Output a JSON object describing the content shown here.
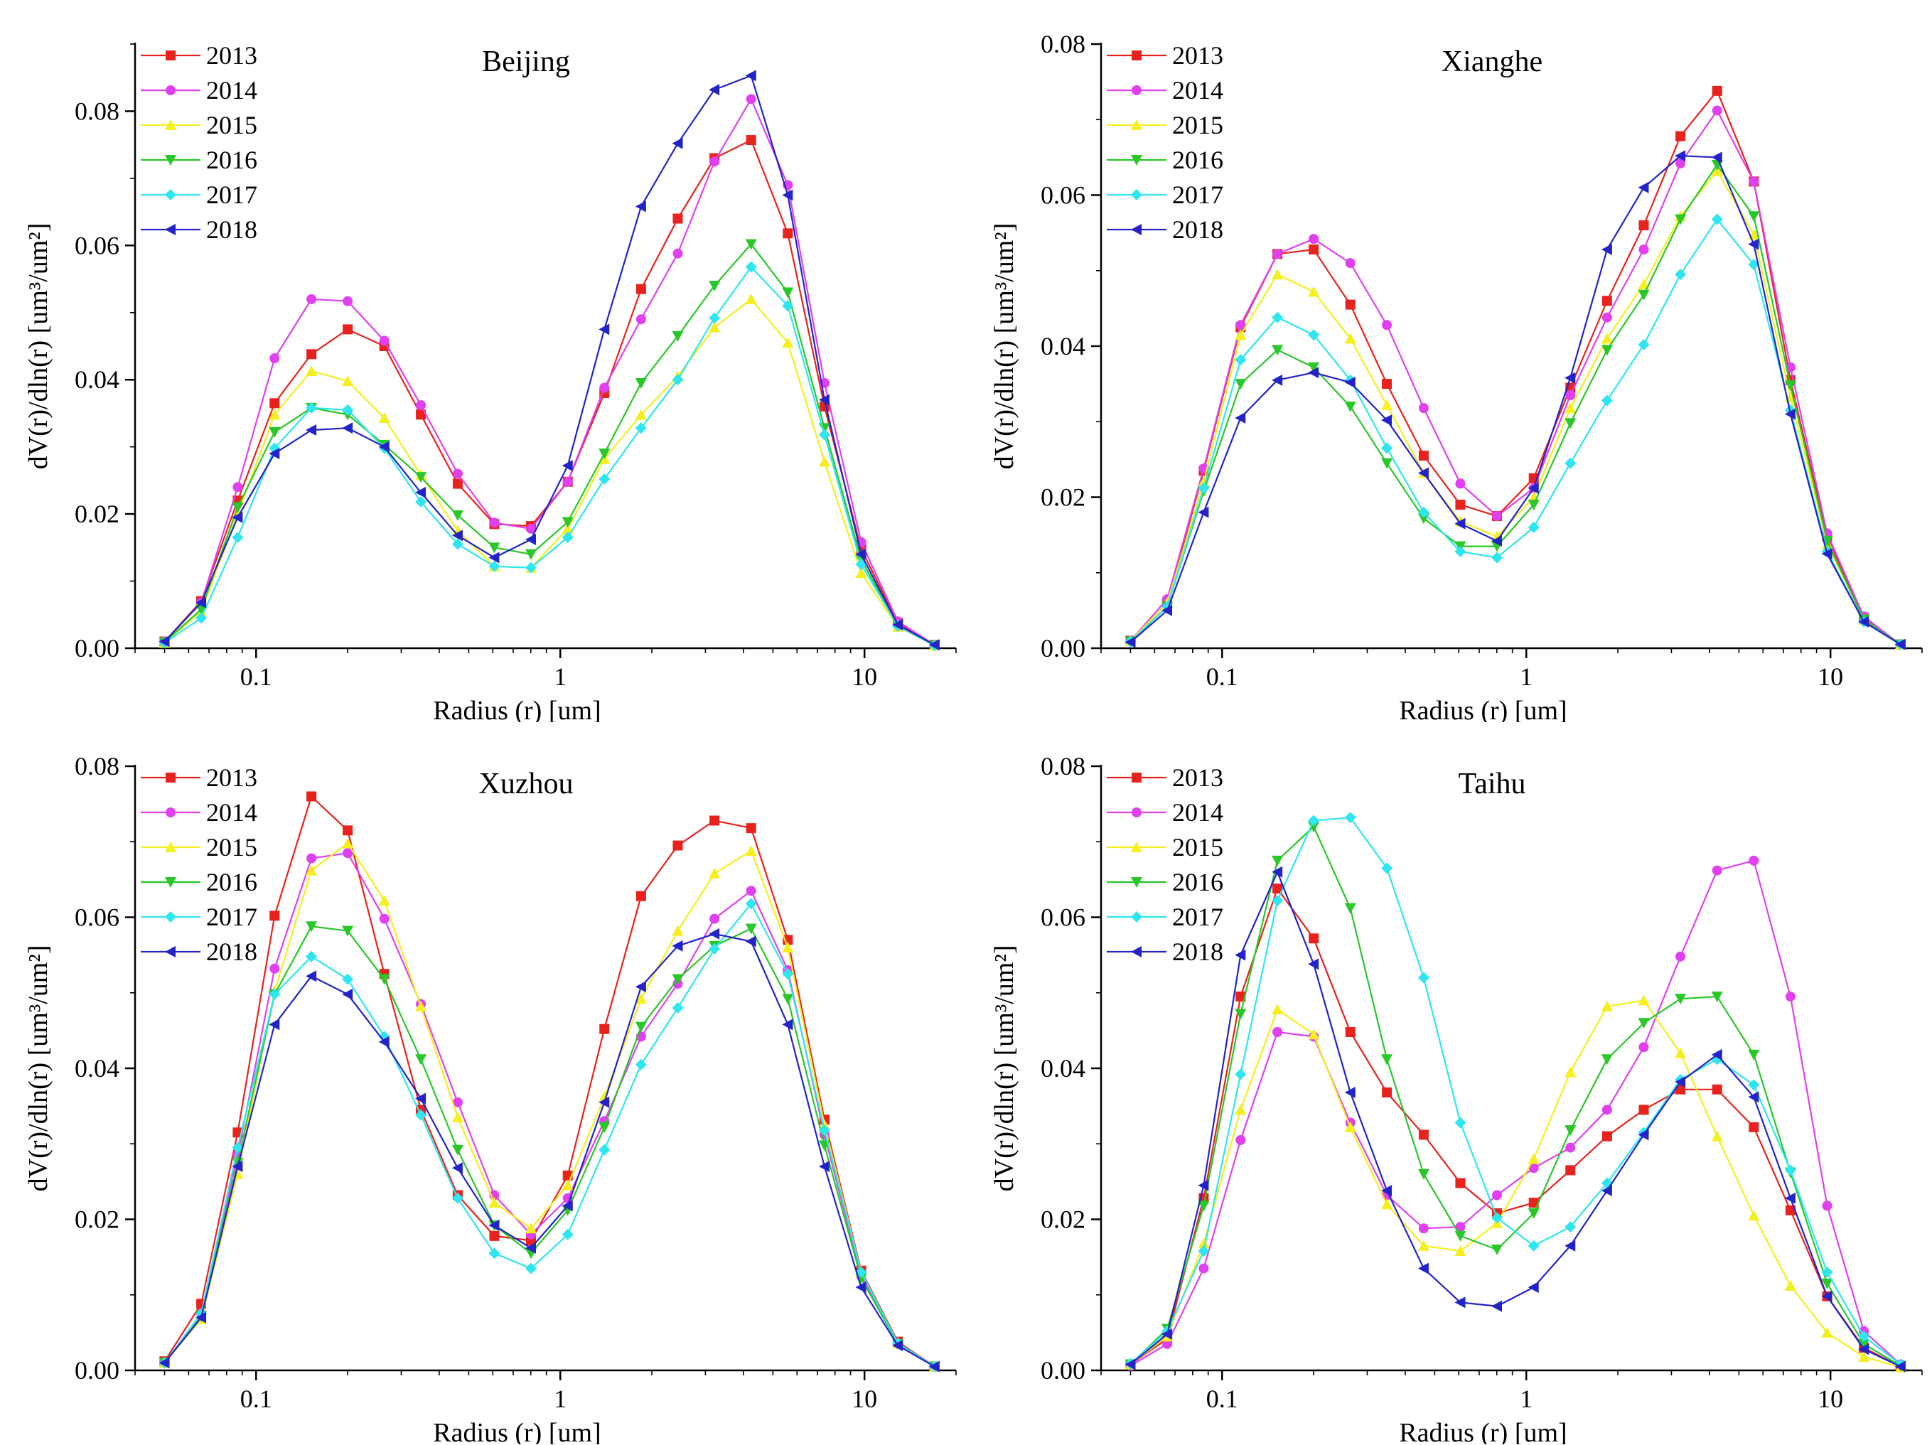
{
  "colors": {
    "2013": "#e8231d",
    "2014": "#e040f0",
    "2015": "#f5ef1e",
    "2016": "#28c828",
    "2017": "#2ee6f0",
    "2018": "#2323c8",
    "axis": "#000000"
  },
  "chart_data": [
    {
      "type": "line",
      "title": "Beijing",
      "xlabel": "Radius (r) [um]",
      "ylabel": "dV(r)/dln(r) [um³/um²]",
      "x_scale": "log",
      "xlim": [
        0.04,
        20
      ],
      "ylim": [
        0,
        0.09
      ],
      "x_ticks": [
        "0.1",
        "1",
        "10"
      ],
      "y_ticks": [
        "0.00",
        "0.02",
        "0.04",
        "0.06",
        "0.08"
      ],
      "legend_position": "top-left",
      "x": [
        0.05,
        0.066,
        0.087,
        0.115,
        0.152,
        0.2,
        0.264,
        0.348,
        0.46,
        0.607,
        0.801,
        1.058,
        1.396,
        1.843,
        2.433,
        3.212,
        4.24,
        5.597,
        7.389,
        9.753,
        12.875,
        16.996
      ],
      "series": [
        {
          "name": "2013",
          "values": [
            0.001,
            0.007,
            0.022,
            0.0365,
            0.0438,
            0.0475,
            0.045,
            0.0348,
            0.0245,
            0.0185,
            0.0182,
            0.0248,
            0.038,
            0.0535,
            0.064,
            0.073,
            0.0757,
            0.0618,
            0.036,
            0.0148,
            0.0038,
            0.0005
          ]
        },
        {
          "name": "2014",
          "values": [
            0.001,
            0.0068,
            0.024,
            0.0432,
            0.052,
            0.0517,
            0.0458,
            0.0362,
            0.026,
            0.0187,
            0.0178,
            0.0248,
            0.0388,
            0.049,
            0.0588,
            0.0725,
            0.0818,
            0.069,
            0.0395,
            0.0158,
            0.004,
            0.0005
          ]
        },
        {
          "name": "2015",
          "values": [
            0.0008,
            0.0055,
            0.02,
            0.0348,
            0.0413,
            0.0398,
            0.0343,
            0.0258,
            0.0175,
            0.0122,
            0.012,
            0.0178,
            0.0282,
            0.0348,
            0.0405,
            0.0478,
            0.052,
            0.0455,
            0.0278,
            0.0112,
            0.0032,
            0.0004
          ]
        },
        {
          "name": "2016",
          "values": [
            0.0009,
            0.0058,
            0.021,
            0.0322,
            0.0358,
            0.0348,
            0.0303,
            0.0255,
            0.0198,
            0.015,
            0.014,
            0.0188,
            0.029,
            0.0395,
            0.0465,
            0.054,
            0.0602,
            0.053,
            0.0328,
            0.0132,
            0.0034,
            0.0004
          ]
        },
        {
          "name": "2017",
          "values": [
            0.0008,
            0.0045,
            0.0165,
            0.0298,
            0.0358,
            0.0355,
            0.0298,
            0.0218,
            0.0155,
            0.0122,
            0.012,
            0.0165,
            0.0252,
            0.0328,
            0.04,
            0.0492,
            0.0568,
            0.051,
            0.0318,
            0.0125,
            0.0033,
            0.0004
          ]
        },
        {
          "name": "2018",
          "values": [
            0.001,
            0.0068,
            0.0195,
            0.029,
            0.0325,
            0.0328,
            0.03,
            0.0232,
            0.0168,
            0.0135,
            0.0162,
            0.0272,
            0.0475,
            0.0658,
            0.0752,
            0.0832,
            0.0853,
            0.0675,
            0.037,
            0.014,
            0.0035,
            0.0005
          ]
        }
      ]
    },
    {
      "type": "line",
      "title": "Xianghe",
      "xlabel": "Radius (r) [um]",
      "ylabel": "dV(r)/dln(r) [um³/um²]",
      "x_scale": "log",
      "xlim": [
        0.04,
        20
      ],
      "ylim": [
        0,
        0.08
      ],
      "x_ticks": [
        "0.1",
        "1",
        "10"
      ],
      "y_ticks": [
        "0.00",
        "0.02",
        "0.04",
        "0.06",
        "0.08"
      ],
      "legend_position": "top-left",
      "x": [
        0.05,
        0.066,
        0.087,
        0.115,
        0.152,
        0.2,
        0.264,
        0.348,
        0.46,
        0.607,
        0.801,
        1.058,
        1.396,
        1.843,
        2.433,
        3.212,
        4.24,
        5.597,
        7.389,
        9.753,
        12.875,
        16.996
      ],
      "series": [
        {
          "name": "2013",
          "values": [
            0.001,
            0.006,
            0.0235,
            0.0425,
            0.0522,
            0.0528,
            0.0455,
            0.035,
            0.0255,
            0.019,
            0.0175,
            0.0225,
            0.0345,
            0.046,
            0.056,
            0.0678,
            0.0738,
            0.0618,
            0.0355,
            0.0148,
            0.004,
            0.0005
          ]
        },
        {
          "name": "2014",
          "values": [
            0.001,
            0.0065,
            0.0238,
            0.0428,
            0.0522,
            0.0542,
            0.051,
            0.0428,
            0.0318,
            0.0218,
            0.0175,
            0.0212,
            0.0335,
            0.0438,
            0.0528,
            0.0642,
            0.0712,
            0.0618,
            0.0372,
            0.0152,
            0.0042,
            0.0005
          ]
        },
        {
          "name": "2015",
          "values": [
            0.001,
            0.006,
            0.022,
            0.0415,
            0.0495,
            0.0472,
            0.041,
            0.0322,
            0.0232,
            0.0168,
            0.0148,
            0.02,
            0.0318,
            0.041,
            0.0482,
            0.0572,
            0.0632,
            0.0548,
            0.0332,
            0.0138,
            0.0038,
            0.0005
          ]
        },
        {
          "name": "2016",
          "values": [
            0.0009,
            0.0055,
            0.0208,
            0.035,
            0.0395,
            0.0372,
            0.032,
            0.0245,
            0.0172,
            0.0135,
            0.0135,
            0.019,
            0.0298,
            0.0395,
            0.0468,
            0.0568,
            0.064,
            0.0572,
            0.0348,
            0.0142,
            0.0038,
            0.0005
          ]
        },
        {
          "name": "2017",
          "values": [
            0.0009,
            0.0055,
            0.0212,
            0.0382,
            0.0438,
            0.0415,
            0.0355,
            0.0265,
            0.018,
            0.0128,
            0.012,
            0.016,
            0.0245,
            0.0328,
            0.0402,
            0.0495,
            0.0568,
            0.0508,
            0.0315,
            0.0128,
            0.0035,
            0.0005
          ]
        },
        {
          "name": "2018",
          "values": [
            0.0008,
            0.005,
            0.018,
            0.0305,
            0.0355,
            0.0365,
            0.0352,
            0.0302,
            0.0232,
            0.0165,
            0.0142,
            0.0212,
            0.0358,
            0.0528,
            0.061,
            0.0652,
            0.065,
            0.0535,
            0.031,
            0.0125,
            0.0035,
            0.0005
          ]
        }
      ]
    },
    {
      "type": "line",
      "title": "Xuzhou",
      "xlabel": "Radius (r) [um]",
      "ylabel": "dV(r)/dln(r) [um³/um²]",
      "x_scale": "log",
      "xlim": [
        0.04,
        20
      ],
      "ylim": [
        0,
        0.08
      ],
      "x_ticks": [
        "0.1",
        "1",
        "10"
      ],
      "y_ticks": [
        "0.00",
        "0.02",
        "0.04",
        "0.06",
        "0.08"
      ],
      "legend_position": "top-left",
      "x": [
        0.05,
        0.066,
        0.087,
        0.115,
        0.152,
        0.2,
        0.264,
        0.348,
        0.46,
        0.607,
        0.801,
        1.058,
        1.396,
        1.843,
        2.433,
        3.212,
        4.24,
        5.597,
        7.389,
        9.753,
        12.875,
        16.996
      ],
      "series": [
        {
          "name": "2013",
          "values": [
            0.0012,
            0.0088,
            0.0315,
            0.0602,
            0.076,
            0.0715,
            0.0525,
            0.0345,
            0.0232,
            0.0178,
            0.0172,
            0.0258,
            0.0452,
            0.0628,
            0.0695,
            0.0728,
            0.0718,
            0.057,
            0.0332,
            0.0132,
            0.0038,
            0.0005
          ]
        },
        {
          "name": "2014",
          "values": [
            0.001,
            0.0075,
            0.0285,
            0.0532,
            0.0678,
            0.0685,
            0.0598,
            0.0485,
            0.0355,
            0.0232,
            0.018,
            0.0228,
            0.033,
            0.0442,
            0.0512,
            0.0598,
            0.0635,
            0.053,
            0.0312,
            0.0125,
            0.0035,
            0.0005
          ]
        },
        {
          "name": "2015",
          "values": [
            0.001,
            0.0068,
            0.026,
            0.0502,
            0.0662,
            0.0698,
            0.0622,
            0.0482,
            0.0335,
            0.0222,
            0.0188,
            0.0245,
            0.0362,
            0.0492,
            0.0582,
            0.0658,
            0.0688,
            0.056,
            0.0325,
            0.013,
            0.0036,
            0.0005
          ]
        },
        {
          "name": "2016",
          "values": [
            0.001,
            0.0072,
            0.0275,
            0.0498,
            0.0588,
            0.0582,
            0.0518,
            0.0412,
            0.0292,
            0.0192,
            0.0155,
            0.0212,
            0.0322,
            0.0455,
            0.0518,
            0.0562,
            0.0585,
            0.0492,
            0.0298,
            0.0122,
            0.0035,
            0.0005
          ]
        },
        {
          "name": "2017",
          "values": [
            0.001,
            0.0075,
            0.0295,
            0.0498,
            0.0548,
            0.0518,
            0.0442,
            0.0338,
            0.0228,
            0.0155,
            0.0135,
            0.018,
            0.0292,
            0.0405,
            0.048,
            0.0558,
            0.0618,
            0.0525,
            0.0318,
            0.013,
            0.0036,
            0.0005
          ]
        },
        {
          "name": "2018",
          "values": [
            0.001,
            0.007,
            0.027,
            0.0458,
            0.0522,
            0.0498,
            0.0435,
            0.036,
            0.0268,
            0.0192,
            0.0162,
            0.0218,
            0.0355,
            0.0508,
            0.0562,
            0.0578,
            0.0568,
            0.0458,
            0.027,
            0.011,
            0.0033,
            0.0005
          ]
        }
      ]
    },
    {
      "type": "line",
      "title": "Taihu",
      "xlabel": "Radius (r) [um]",
      "ylabel": "dV(r)/dln(r) [um³/um²]",
      "x_scale": "log",
      "xlim": [
        0.04,
        20
      ],
      "ylim": [
        0,
        0.08
      ],
      "x_ticks": [
        "0.1",
        "1",
        "10"
      ],
      "y_ticks": [
        "0.00",
        "0.02",
        "0.04",
        "0.06",
        "0.08"
      ],
      "legend_position": "top-left",
      "x": [
        0.05,
        0.066,
        0.087,
        0.115,
        0.152,
        0.2,
        0.264,
        0.348,
        0.46,
        0.607,
        0.801,
        1.058,
        1.396,
        1.843,
        2.433,
        3.212,
        4.24,
        5.597,
        7.389,
        9.753,
        12.875,
        16.996
      ],
      "series": [
        {
          "name": "2013",
          "values": [
            0.0008,
            0.0042,
            0.0228,
            0.0495,
            0.0638,
            0.0572,
            0.0448,
            0.0368,
            0.0312,
            0.0248,
            0.0208,
            0.0222,
            0.0265,
            0.031,
            0.0345,
            0.0372,
            0.0372,
            0.0322,
            0.0212,
            0.0098,
            0.003,
            0.0005
          ]
        },
        {
          "name": "2014",
          "values": [
            0.0006,
            0.0035,
            0.0135,
            0.0305,
            0.0448,
            0.0442,
            0.0328,
            0.0232,
            0.0188,
            0.019,
            0.0232,
            0.0268,
            0.0295,
            0.0345,
            0.0428,
            0.0548,
            0.0662,
            0.0675,
            0.0495,
            0.0218,
            0.0052,
            0.0008
          ]
        },
        {
          "name": "2015",
          "values": [
            0.0008,
            0.0045,
            0.0168,
            0.0345,
            0.0478,
            0.0445,
            0.0322,
            0.022,
            0.0165,
            0.0158,
            0.0195,
            0.028,
            0.0395,
            0.0482,
            0.049,
            0.042,
            0.031,
            0.0205,
            0.0112,
            0.005,
            0.0018,
            0.0004
          ]
        },
        {
          "name": "2016",
          "values": [
            0.0008,
            0.0055,
            0.0218,
            0.0472,
            0.0675,
            0.072,
            0.0612,
            0.0412,
            0.026,
            0.0178,
            0.016,
            0.0208,
            0.0318,
            0.0412,
            0.046,
            0.0492,
            0.0495,
            0.0418,
            0.0262,
            0.0115,
            0.0035,
            0.0006
          ]
        },
        {
          "name": "2017",
          "values": [
            0.0009,
            0.0052,
            0.0158,
            0.0392,
            0.0622,
            0.0728,
            0.0732,
            0.0665,
            0.052,
            0.0328,
            0.0202,
            0.0165,
            0.019,
            0.0248,
            0.0315,
            0.0385,
            0.0412,
            0.0378,
            0.0265,
            0.013,
            0.0045,
            0.0008
          ]
        },
        {
          "name": "2018",
          "values": [
            0.0008,
            0.0048,
            0.0245,
            0.055,
            0.066,
            0.0538,
            0.0368,
            0.0238,
            0.0135,
            0.009,
            0.0085,
            0.011,
            0.0165,
            0.0238,
            0.0312,
            0.0382,
            0.0418,
            0.0362,
            0.0228,
            0.0098,
            0.0028,
            0.0005
          ]
        }
      ]
    }
  ]
}
